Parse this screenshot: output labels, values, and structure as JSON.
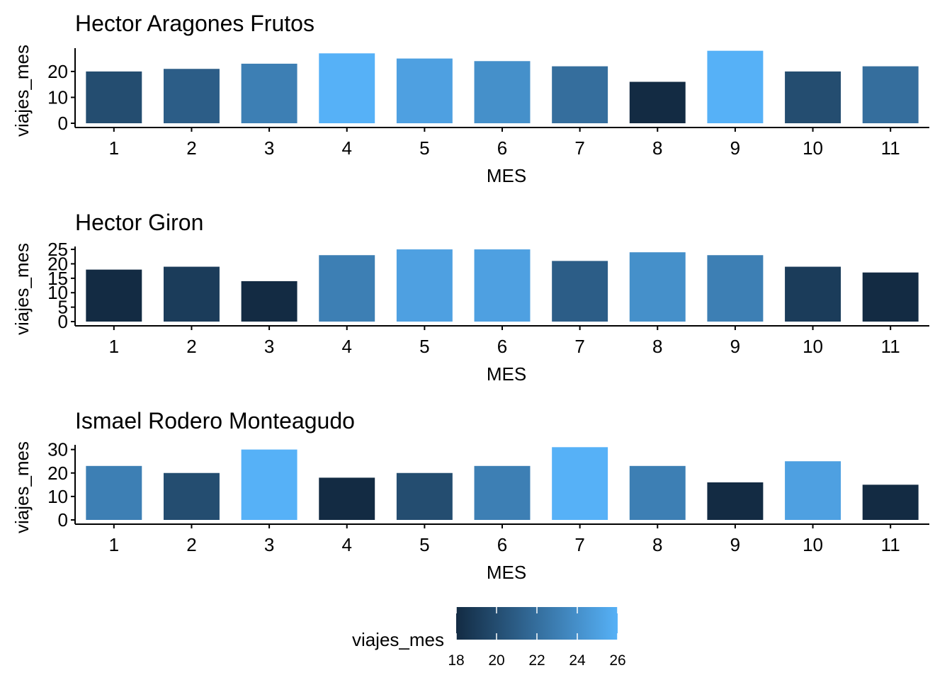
{
  "chart_data": [
    {
      "type": "bar",
      "title": "Hector Aragones Frutos",
      "xlabel": "MES",
      "ylabel": "viajes_mes",
      "categories": [
        "1",
        "2",
        "3",
        "4",
        "5",
        "6",
        "7",
        "8",
        "9",
        "10",
        "11"
      ],
      "values": [
        20,
        21,
        23,
        27,
        25,
        24,
        22,
        16,
        28,
        20,
        22
      ],
      "yticks": [
        0,
        10,
        20
      ],
      "ylim": [
        0,
        29
      ],
      "grid": false
    },
    {
      "type": "bar",
      "title": "Hector Giron",
      "xlabel": "MES",
      "ylabel": "viajes_mes",
      "categories": [
        "1",
        "2",
        "3",
        "4",
        "5",
        "6",
        "7",
        "8",
        "9",
        "10",
        "11"
      ],
      "values": [
        18,
        19,
        14,
        23,
        25,
        25,
        21,
        24,
        23,
        19,
        17
      ],
      "yticks": [
        0,
        5,
        10,
        15,
        20,
        25
      ],
      "ylim": [
        0,
        26
      ],
      "grid": false
    },
    {
      "type": "bar",
      "title": "Ismael Rodero Monteagudo",
      "xlabel": "MES",
      "ylabel": "viajes_mes",
      "categories": [
        "1",
        "2",
        "3",
        "4",
        "5",
        "6",
        "7",
        "8",
        "9",
        "10",
        "11"
      ],
      "values": [
        23,
        20,
        30,
        18,
        20,
        23,
        31,
        23,
        16,
        25,
        15
      ],
      "yticks": [
        0,
        10,
        20,
        30
      ],
      "ylim": [
        0,
        32
      ],
      "grid": false
    }
  ],
  "legend": {
    "title": "viajes_mes",
    "placement": "bottom",
    "ticks": [
      18,
      20,
      22,
      24,
      26
    ],
    "range": [
      18,
      26
    ],
    "low_color": "#132B43",
    "high_color": "#56B1F7"
  }
}
